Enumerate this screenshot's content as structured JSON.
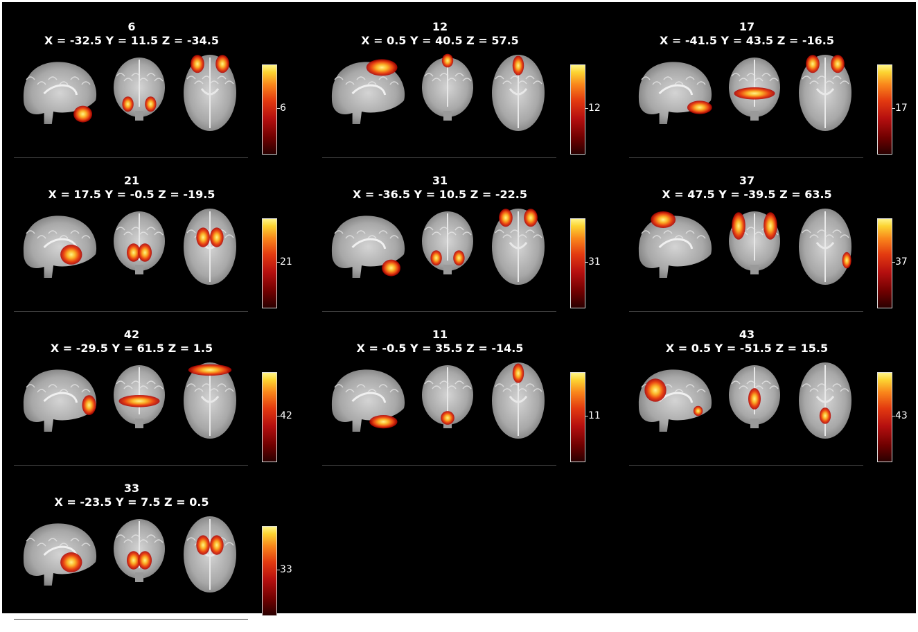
{
  "figure": {
    "panels": [
      {
        "id": "6",
        "coords": "X = -32.5 Y = 11.5 Z = -34.5",
        "colorbar_label": "6",
        "views": {
          "sagittal": "temporal-pole",
          "coronal": "bilateral-low",
          "axial": "orbital-frontal-top"
        }
      },
      {
        "id": "12",
        "coords": "X = 0.5 Y = 40.5 Z = 57.5",
        "colorbar_label": "12",
        "views": {
          "sagittal": "dorsal-frontal",
          "coronal": "superior-midline",
          "axial": "anterior-midline"
        }
      },
      {
        "id": "17",
        "coords": "X = -41.5 Y = 43.5 Z = -16.5",
        "colorbar_label": "17",
        "views": {
          "sagittal": "orbitofrontal",
          "coronal": "bilateral-band",
          "axial": "orbital-frontal-top"
        }
      },
      {
        "id": "21",
        "coords": "X = 17.5 Y = -0.5 Z = -19.5",
        "colorbar_label": "21",
        "views": {
          "sagittal": "deep-center",
          "coronal": "bilateral-medial",
          "axial": "bilateral-center"
        }
      },
      {
        "id": "31",
        "coords": "X = -36.5 Y = 10.5 Z = -22.5",
        "colorbar_label": "31",
        "views": {
          "sagittal": "temporal-pole",
          "coronal": "bilateral-low",
          "axial": "orbital-frontal-top"
        }
      },
      {
        "id": "37",
        "coords": "X = 47.5 Y = -39.5 Z = 63.5",
        "colorbar_label": "37",
        "views": {
          "sagittal": "parietal-superior",
          "coronal": "bilateral-superior",
          "axial": "lateral-right-small"
        }
      },
      {
        "id": "42",
        "coords": "X = -29.5 Y = 61.5 Z = 1.5",
        "colorbar_label": "42",
        "views": {
          "sagittal": "frontal-pole",
          "coronal": "bilateral-band",
          "axial": "frontal-arc"
        }
      },
      {
        "id": "11",
        "coords": "X = -0.5 Y = 35.5 Z = -14.5",
        "colorbar_label": "11",
        "views": {
          "sagittal": "orbital-medial",
          "coronal": "inferior-midline",
          "axial": "anterior-midline"
        }
      },
      {
        "id": "43",
        "coords": "X = 0.5 Y = -51.5 Z = 15.5",
        "colorbar_label": "43",
        "views": {
          "sagittal": "posterior-medial",
          "coronal": "center-medial",
          "axial": "posterior-midline"
        }
      },
      {
        "id": "33",
        "coords": "X = -23.5 Y = 7.5 Z = 0.5",
        "colorbar_label": "33",
        "views": {
          "sagittal": "deep-center",
          "coronal": "bilateral-medial",
          "axial": "bilateral-center"
        }
      }
    ],
    "colormap": {
      "low": "#2a0000",
      "mid": "#e33a10",
      "high": "#fff58a"
    }
  }
}
